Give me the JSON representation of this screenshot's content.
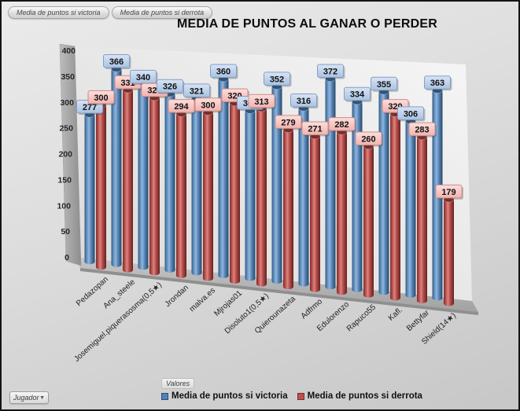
{
  "title": "MEDIA DE PUNTOS AL GANAR O PERDER",
  "toolbar": {
    "buttons": [
      "Media de puntos si victoria",
      "Media de puntos si derrota"
    ]
  },
  "controls": {
    "player_dropdown": {
      "label": "Jugador"
    }
  },
  "legend": {
    "group_label": "Valores",
    "position": "bottom",
    "items": [
      {
        "label": "Media de puntos si victoria",
        "color": "#4f81bd"
      },
      {
        "label": "Media de puntos si derrota",
        "color": "#c0504d"
      }
    ]
  },
  "chart_data": {
    "type": "bar",
    "style": "3d-cylinder",
    "title": "MEDIA DE PUNTOS AL GANAR O PERDER",
    "categories": [
      "Pedazopan",
      "Ana_steele",
      "Josemiguel.piquerasosma(0,5★)",
      "Jrondan",
      "malva.es",
      "Mjrojas01",
      "Disoluto1(0,5★)",
      "Quierounazeta",
      "Adfrmo",
      "Edulorenzo",
      "Rapuco55",
      "Kafl.",
      "Bettyfar",
      "Shield(14★)"
    ],
    "series": [
      {
        "name": "Media de puntos si victoria",
        "color": "#4f81bd",
        "values": [
          277,
          366,
          340,
          326,
          321,
          360,
          305,
          352,
          316,
          372,
          334,
          355,
          306,
          363
        ]
      },
      {
        "name": "Media de puntos si derrota",
        "color": "#c0504d",
        "values": [
          300,
          331,
          320,
          294,
          300,
          320,
          313,
          279,
          271,
          282,
          260,
          320,
          283,
          179
        ]
      }
    ],
    "ylim": [
      0,
      400
    ],
    "yticks": [
      0,
      50,
      100,
      150,
      200,
      250,
      300,
      350,
      400
    ],
    "data_labels": true,
    "grid": false,
    "legend_position": "bottom"
  }
}
